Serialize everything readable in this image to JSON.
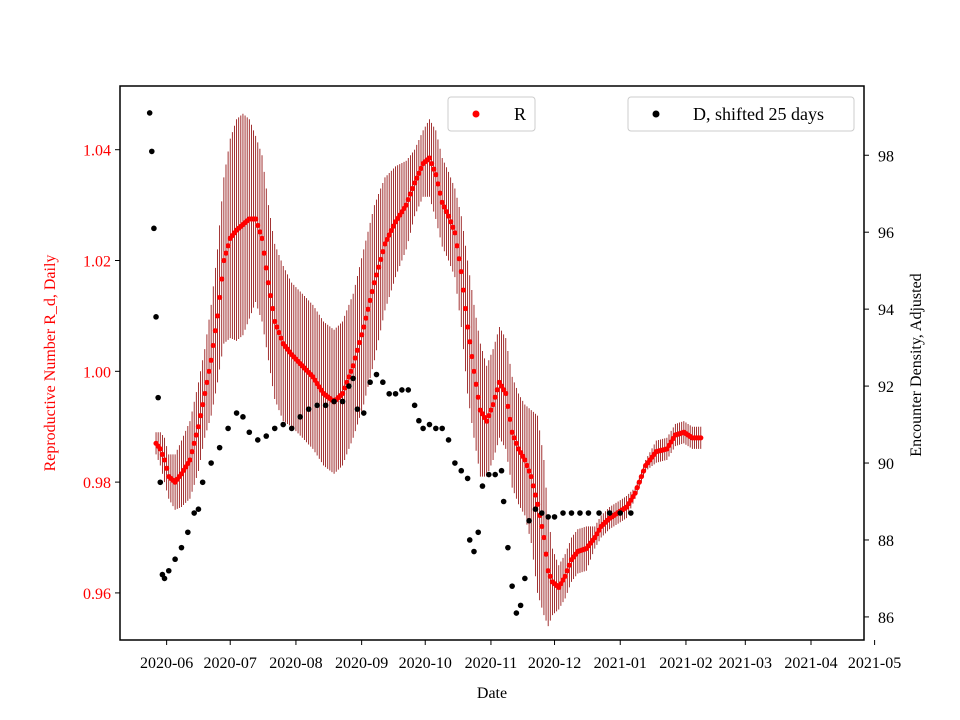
{
  "chart_data": {
    "type": "scatter",
    "xlabel": "Date",
    "ylabel_left": "Reproductive Number R_d, Daily",
    "ylabel_right": "Encounter Density, Adjusted",
    "colors": {
      "R": "#ff0000",
      "R_err": "#8b0000",
      "D": "#000000",
      "left_axis_text": "#ff0000"
    },
    "x_ticks": [
      {
        "day": 31,
        "label": "2020-06"
      },
      {
        "day": 61,
        "label": "2020-07"
      },
      {
        "day": 92,
        "label": "2020-08"
      },
      {
        "day": 123,
        "label": "2020-09"
      },
      {
        "day": 153,
        "label": "2020-10"
      },
      {
        "day": 184,
        "label": "2020-11"
      },
      {
        "day": 214,
        "label": "2020-12"
      },
      {
        "day": 245,
        "label": "2021-01"
      },
      {
        "day": 276,
        "label": "2021-02"
      },
      {
        "day": 304,
        "label": "2021-03"
      },
      {
        "day": 335,
        "label": "2021-04"
      },
      {
        "day": 365,
        "label": "2021-05"
      }
    ],
    "xlim_days": [
      9,
      360
    ],
    "note_x": "x values are days since 2020-05-01",
    "left_axis": {
      "ylim": [
        0.9515,
        1.0515
      ],
      "ticks": [
        0.96,
        0.98,
        1.0,
        1.02,
        1.04
      ],
      "tick_labels": [
        "0.96",
        "0.98",
        "1.00",
        "1.02",
        "1.04"
      ]
    },
    "right_axis": {
      "ylim": [
        85.4,
        99.8
      ],
      "ticks": [
        86,
        88,
        90,
        92,
        94,
        96,
        98
      ],
      "tick_labels": [
        "86",
        "88",
        "90",
        "92",
        "94",
        "96",
        "98"
      ]
    },
    "series": [
      {
        "name": "R",
        "axis": "left",
        "marker": "red dots with dark red vertical error bars",
        "points": [
          [
            26,
            0.987,
            0.002
          ],
          [
            28,
            0.986,
            0.003
          ],
          [
            30,
            0.984,
            0.004
          ],
          [
            32,
            0.981,
            0.004
          ],
          [
            35,
            0.98,
            0.005
          ],
          [
            38,
            0.9815,
            0.006
          ],
          [
            42,
            0.984,
            0.007
          ],
          [
            46,
            0.99,
            0.008
          ],
          [
            49,
            0.996,
            0.008
          ],
          [
            52,
            1.002,
            0.01
          ],
          [
            55,
            1.01,
            0.012
          ],
          [
            58,
            1.02,
            0.015
          ],
          [
            61,
            1.024,
            0.018
          ],
          [
            64,
            1.0255,
            0.02
          ],
          [
            67,
            1.0265,
            0.02
          ],
          [
            70,
            1.0275,
            0.018
          ],
          [
            73,
            1.0275,
            0.015
          ],
          [
            76,
            1.024,
            0.015
          ],
          [
            79,
            1.016,
            0.014
          ],
          [
            82,
            1.009,
            0.014
          ],
          [
            86,
            1.005,
            0.014
          ],
          [
            90,
            1.003,
            0.013
          ],
          [
            95,
            1.001,
            0.013
          ],
          [
            100,
            0.999,
            0.013
          ],
          [
            105,
            0.996,
            0.013
          ],
          [
            110,
            0.9945,
            0.013
          ],
          [
            114,
            0.996,
            0.013
          ],
          [
            119,
            1.001,
            0.013
          ],
          [
            124,
            1.008,
            0.014
          ],
          [
            129,
            1.016,
            0.014
          ],
          [
            134,
            1.023,
            0.012
          ],
          [
            139,
            1.027,
            0.01
          ],
          [
            144,
            1.03,
            0.008
          ],
          [
            148,
            1.034,
            0.006
          ],
          [
            152,
            1.0375,
            0.006
          ],
          [
            155,
            1.0385,
            0.007
          ],
          [
            158,
            1.0355,
            0.008
          ],
          [
            161,
            1.0305,
            0.008
          ],
          [
            164,
            1.028,
            0.008
          ],
          [
            167,
            1.025,
            0.008
          ],
          [
            170,
            1.018,
            0.01
          ],
          [
            173,
            1.008,
            0.012
          ],
          [
            176,
            1.0,
            0.012
          ],
          [
            179,
            0.993,
            0.012
          ],
          [
            182,
            0.991,
            0.01
          ],
          [
            185,
            0.994,
            0.01
          ],
          [
            188,
            0.998,
            0.01
          ],
          [
            191,
            0.996,
            0.01
          ],
          [
            194,
            0.989,
            0.01
          ],
          [
            197,
            0.986,
            0.01
          ],
          [
            200,
            0.984,
            0.01
          ],
          [
            203,
            0.981,
            0.012
          ],
          [
            206,
            0.976,
            0.016
          ],
          [
            209,
            0.97,
            0.014
          ],
          [
            211,
            0.964,
            0.01
          ],
          [
            213,
            0.962,
            0.006
          ],
          [
            216,
            0.961,
            0.004
          ],
          [
            219,
            0.963,
            0.004
          ],
          [
            222,
            0.966,
            0.004
          ],
          [
            225,
            0.9675,
            0.004
          ],
          [
            229,
            0.968,
            0.004
          ],
          [
            233,
            0.97,
            0.002
          ],
          [
            236,
            0.972,
            0.002
          ],
          [
            240,
            0.9735,
            0.002
          ],
          [
            244,
            0.9745,
            0.002
          ],
          [
            248,
            0.9755,
            0.002
          ],
          [
            252,
            0.978,
            0.001
          ],
          [
            257,
            0.983,
            0.001
          ],
          [
            262,
            0.9855,
            0.002
          ],
          [
            267,
            0.986,
            0.002
          ],
          [
            271,
            0.9885,
            0.002
          ],
          [
            275,
            0.989,
            0.002
          ],
          [
            279,
            0.988,
            0.002
          ],
          [
            283,
            0.988,
            0.002
          ]
        ]
      },
      {
        "name": "D, shifted 25 days",
        "axis": "right",
        "marker": "black dots",
        "points": [
          [
            23,
            99.1
          ],
          [
            24,
            98.1
          ],
          [
            25,
            96.1
          ],
          [
            26,
            93.8
          ],
          [
            27,
            91.7
          ],
          [
            28,
            89.5
          ],
          [
            29,
            87.1
          ],
          [
            30,
            87.0
          ],
          [
            32,
            87.2
          ],
          [
            35,
            87.5
          ],
          [
            38,
            87.8
          ],
          [
            41,
            88.2
          ],
          [
            44,
            88.7
          ],
          [
            46,
            88.8
          ],
          [
            48,
            89.5
          ],
          [
            52,
            90.0
          ],
          [
            56,
            90.4
          ],
          [
            60,
            90.9
          ],
          [
            64,
            91.3
          ],
          [
            67,
            91.2
          ],
          [
            70,
            90.8
          ],
          [
            74,
            90.6
          ],
          [
            78,
            90.7
          ],
          [
            82,
            90.9
          ],
          [
            86,
            91.0
          ],
          [
            90,
            90.9
          ],
          [
            94,
            91.2
          ],
          [
            98,
            91.4
          ],
          [
            102,
            91.5
          ],
          [
            106,
            91.5
          ],
          [
            110,
            91.6
          ],
          [
            114,
            91.6
          ],
          [
            117,
            92.0
          ],
          [
            119,
            92.2
          ],
          [
            121,
            91.4
          ],
          [
            124,
            91.3
          ],
          [
            127,
            92.1
          ],
          [
            130,
            92.3
          ],
          [
            133,
            92.1
          ],
          [
            136,
            91.8
          ],
          [
            139,
            91.8
          ],
          [
            142,
            91.9
          ],
          [
            145,
            91.9
          ],
          [
            148,
            91.5
          ],
          [
            150,
            91.1
          ],
          [
            152,
            90.9
          ],
          [
            155,
            91.0
          ],
          [
            158,
            90.9
          ],
          [
            161,
            90.9
          ],
          [
            164,
            90.6
          ],
          [
            167,
            90.0
          ],
          [
            170,
            89.8
          ],
          [
            173,
            89.6
          ],
          [
            174,
            88.0
          ],
          [
            176,
            87.7
          ],
          [
            178,
            88.2
          ],
          [
            180,
            89.4
          ],
          [
            183,
            89.7
          ],
          [
            186,
            89.7
          ],
          [
            189,
            89.8
          ],
          [
            190,
            89.0
          ],
          [
            192,
            87.8
          ],
          [
            194,
            86.8
          ],
          [
            196,
            86.1
          ],
          [
            198,
            86.3
          ],
          [
            200,
            87.0
          ],
          [
            202,
            88.5
          ],
          [
            205,
            88.8
          ],
          [
            208,
            88.7
          ],
          [
            211,
            88.6
          ],
          [
            214,
            88.6
          ],
          [
            218,
            88.7
          ],
          [
            222,
            88.7
          ],
          [
            226,
            88.7
          ],
          [
            230,
            88.7
          ],
          [
            235,
            88.7
          ],
          [
            240,
            88.7
          ],
          [
            245,
            88.7
          ],
          [
            250,
            88.7
          ]
        ]
      }
    ],
    "legends": [
      {
        "label": "R",
        "marker_color": "#ff0000",
        "position": "top-center"
      },
      {
        "label": "D, shifted 25 days",
        "marker_color": "#000000",
        "position": "top-right"
      }
    ]
  }
}
